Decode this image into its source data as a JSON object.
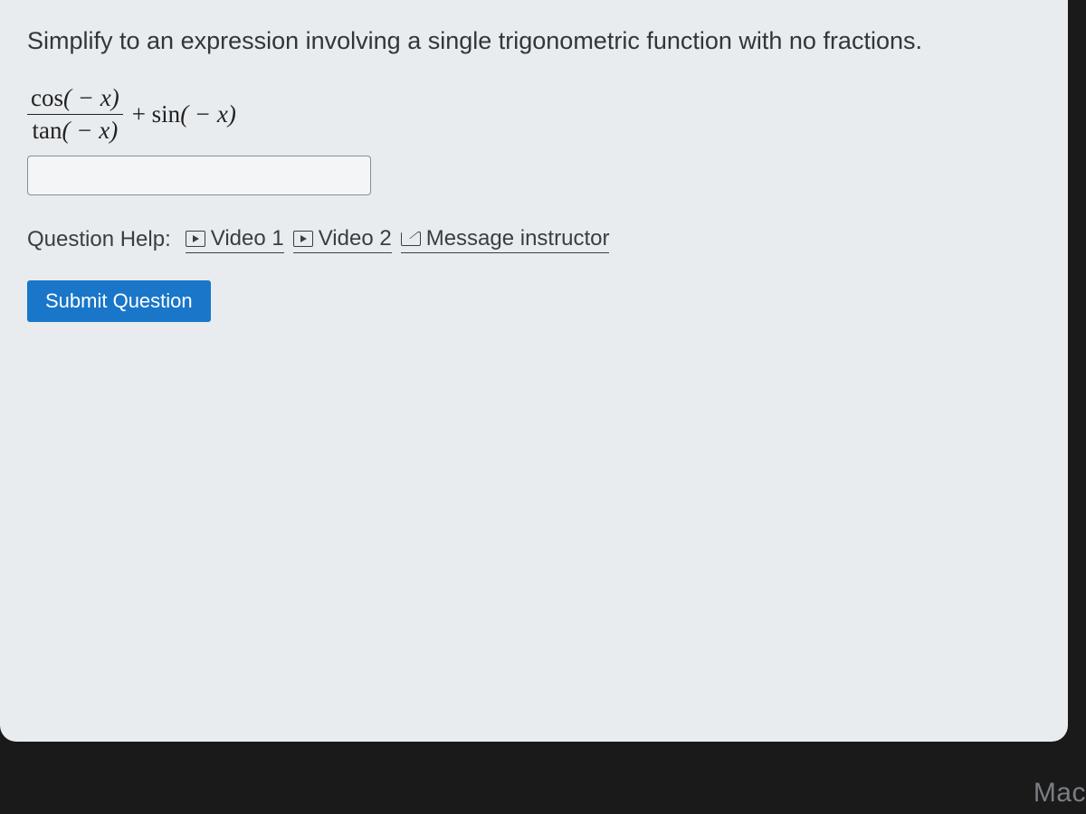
{
  "prompt": "Simplify to an expression involving a single trigonometric function with no fractions.",
  "expression": {
    "numerator_fn": "cos",
    "numerator_arg": "( − x)",
    "denominator_fn": "tan",
    "denominator_arg": "( − x)",
    "plus": " + ",
    "rhs_fn": "sin",
    "rhs_arg": "( − x)"
  },
  "answer_value": "",
  "help": {
    "label": "Question Help:",
    "video1": "Video 1",
    "video2": "Video 2",
    "message": "Message instructor"
  },
  "submit_label": "Submit Question",
  "device_label": "Mac",
  "colors": {
    "panel_bg": "#e8ecef",
    "text": "#333538",
    "button_bg": "#1976c9",
    "button_text": "#ffffff",
    "input_border": "#8a8e92"
  }
}
